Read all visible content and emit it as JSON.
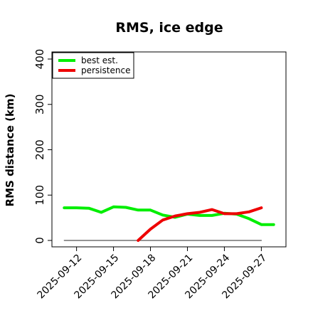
{
  "chart_data": {
    "type": "line",
    "title": "RMS, ice edge",
    "ylabel": "RMS distance (km)",
    "xlabel": "",
    "ylim": [
      0,
      400
    ],
    "xlim": [
      "2025-09-10",
      "2025-09-29"
    ],
    "yticks": [
      "0",
      "100",
      "200",
      "300",
      "400"
    ],
    "xticks": [
      "2025-09-12",
      "2025-09-15",
      "2025-09-18",
      "2025-09-21",
      "2025-09-24",
      "2025-09-27"
    ],
    "legend_position": "top-left",
    "series": [
      {
        "name": "best est.",
        "color": "#00ee00",
        "x": [
          "2025-09-11",
          "2025-09-12",
          "2025-09-13",
          "2025-09-14",
          "2025-09-15",
          "2025-09-16",
          "2025-09-17",
          "2025-09-18",
          "2025-09-19",
          "2025-09-20",
          "2025-09-21",
          "2025-09-22",
          "2025-09-23",
          "2025-09-24",
          "2025-09-25",
          "2025-09-26",
          "2025-09-27",
          "2025-09-28"
        ],
        "values": [
          72,
          72,
          71,
          62,
          74,
          73,
          67,
          67,
          56,
          51,
          58,
          55,
          55,
          60,
          58,
          48,
          35,
          35
        ]
      },
      {
        "name": "persistence",
        "color": "#ee0000",
        "x": [
          "2025-09-17",
          "2025-09-18",
          "2025-09-19",
          "2025-09-20",
          "2025-09-21",
          "2025-09-22",
          "2025-09-23",
          "2025-09-24",
          "2025-09-25",
          "2025-09-26",
          "2025-09-27"
        ],
        "values": [
          0,
          25,
          45,
          54,
          59,
          62,
          68,
          59,
          59,
          63,
          72
        ]
      },
      {
        "name": "",
        "color": "#555555",
        "x": [
          "2025-09-11",
          "2025-09-27"
        ],
        "values": [
          0,
          0
        ]
      }
    ]
  }
}
